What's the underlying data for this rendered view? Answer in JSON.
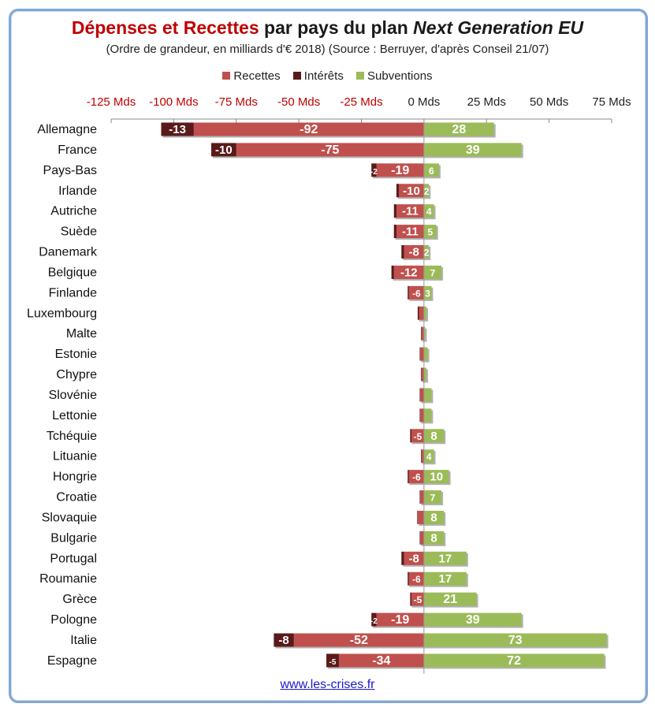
{
  "title": {
    "part1": "Dépenses et Recettes",
    "part2": " par pays du plan ",
    "part3": "Next Generation EU"
  },
  "subtitle": "(Ordre de grandeur, en milliards d'€ 2018) (Source : Berruyer, d'après Conseil 21/07)",
  "footer": "www.les-crises.fr",
  "colors": {
    "recettes": "#c0504d",
    "interets": "#5a1a1a",
    "subventions": "#9bbb59",
    "neg_tick": "#c00000",
    "pos_tick": "#222222",
    "border": "#7FA7D6"
  },
  "chart_data": {
    "type": "bar",
    "orientation": "horizontal",
    "stacked": true,
    "xlim": [
      -125,
      75
    ],
    "xticks": [
      -125,
      -100,
      -75,
      -50,
      -25,
      0,
      25,
      50,
      75
    ],
    "xtick_labels": [
      "-125 Mds",
      "-100 Mds",
      "-75 Mds",
      "-50 Mds",
      "-25 Mds",
      "0 Mds",
      "25 Mds",
      "50 Mds",
      "75 Mds"
    ],
    "legend": [
      "Recettes",
      "Intérêts",
      "Subventions"
    ],
    "legend_position": "top",
    "categories": [
      "Allemagne",
      "France",
      "Pays-Bas",
      "Irlande",
      "Autriche",
      "Suède",
      "Danemark",
      "Belgique",
      "Finlande",
      "Luxembourg",
      "Malte",
      "Estonie",
      "Chypre",
      "Slovénie",
      "Lettonie",
      "Tchéquie",
      "Lituanie",
      "Hongrie",
      "Croatie",
      "Slovaquie",
      "Bulgarie",
      "Portugal",
      "Roumanie",
      "Grèce",
      "Pologne",
      "Italie",
      "Espagne"
    ],
    "series": [
      {
        "name": "Recettes",
        "values": [
          -92,
          -75,
          -19,
          -10,
          -11,
          -11,
          -8,
          -12,
          -6,
          -2,
          -1,
          -1.5,
          -1,
          -1.5,
          -1.5,
          -5,
          -1,
          -6,
          -1.5,
          -2.5,
          -1.5,
          -8,
          -6,
          -5,
          -19,
          -52,
          -34
        ],
        "labels": [
          "-92",
          "-75",
          "-19",
          "-10",
          "-11",
          "-11",
          "-8",
          "-12",
          "-6",
          "",
          "",
          "",
          "",
          "",
          "",
          "-5",
          "",
          "-6",
          "",
          "",
          "",
          "-8",
          "-6",
          "-5",
          "-19",
          "-52",
          "-34"
        ]
      },
      {
        "name": "Intérêts",
        "values": [
          -13,
          -10,
          -2,
          -1,
          -1,
          -1,
          -1,
          -1,
          -0.5,
          -0.5,
          -0.2,
          -0.2,
          -0.2,
          -0.2,
          -0.2,
          -0.5,
          -0.2,
          -0.5,
          -0.2,
          -0.2,
          -0.2,
          -1,
          -0.5,
          -0.5,
          -2,
          -8,
          -5
        ],
        "labels": [
          "-13",
          "-10",
          "-2",
          "",
          "",
          "",
          "",
          "",
          "",
          "",
          "",
          "",
          "",
          "",
          "",
          "",
          "",
          "",
          "",
          "",
          "",
          "",
          "",
          "",
          "-2",
          "-8",
          "-5"
        ]
      },
      {
        "name": "Subventions",
        "values": [
          28,
          39,
          6,
          2,
          4,
          5,
          2,
          7,
          3,
          1,
          0.5,
          1.5,
          1,
          3,
          3,
          8,
          4,
          10,
          7,
          8,
          8,
          17,
          17,
          21,
          39,
          73,
          72
        ],
        "labels": [
          "28",
          "39",
          "6",
          "2",
          "4",
          "5",
          "2",
          "7",
          "3",
          "",
          "",
          "",
          "",
          "",
          "",
          "8",
          "4",
          "10",
          "7",
          "8",
          "8",
          "17",
          "17",
          "21",
          "39",
          "73",
          "72"
        ]
      }
    ]
  }
}
